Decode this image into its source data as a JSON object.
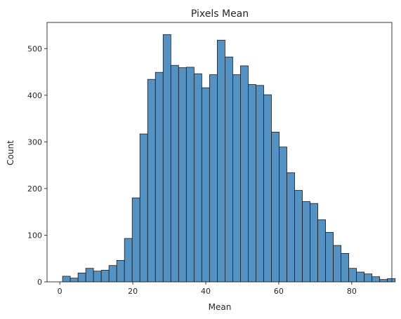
{
  "chart_data": {
    "type": "bar",
    "title": "Pixels Mean",
    "xlabel": "Mean",
    "ylabel": "Count",
    "xlim": [
      -3.5,
      91.0
    ],
    "ylim": [
      0,
      556
    ],
    "bin_width": 2.12,
    "bin_start": 0.75,
    "x_ticks": [
      0,
      20,
      40,
      60,
      80
    ],
    "y_ticks": [
      0,
      100,
      200,
      300,
      400,
      500
    ],
    "bar_color": "#5592c4",
    "edge_color": "#1a1a1a",
    "values": [
      12,
      8,
      19,
      29,
      23,
      25,
      35,
      46,
      93,
      180,
      317,
      434,
      449,
      530,
      464,
      459,
      460,
      446,
      416,
      444,
      518,
      482,
      444,
      463,
      423,
      421,
      401,
      321,
      289,
      234,
      196,
      172,
      168,
      133,
      106,
      78,
      61,
      29,
      21,
      17,
      11,
      5,
      7
    ],
    "grid": false,
    "legend": "none"
  }
}
